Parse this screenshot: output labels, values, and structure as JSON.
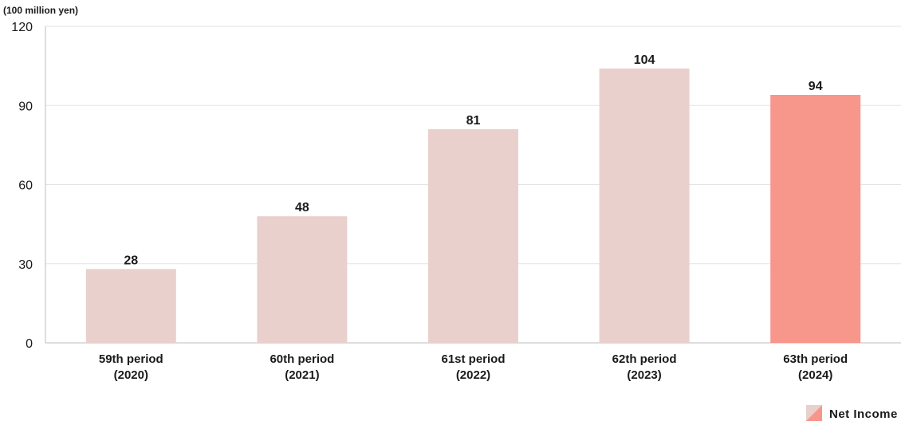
{
  "chart_data": {
    "type": "bar",
    "unit_label": "(100 million yen)",
    "categories": [
      {
        "line1": "59th period",
        "line2": "(2020)"
      },
      {
        "line1": "60th period",
        "line2": "(2021)"
      },
      {
        "line1": "61st period",
        "line2": "(2022)"
      },
      {
        "line1": "62th period",
        "line2": "(2023)"
      },
      {
        "line1": "63th period",
        "line2": "(2024)"
      }
    ],
    "series": [
      {
        "name": "Net Income",
        "values": [
          28,
          48,
          81,
          104,
          94
        ],
        "highlight_index": 4
      }
    ],
    "ylim": [
      0,
      120
    ],
    "yticks": [
      0,
      30,
      60,
      90,
      120
    ],
    "grid": true,
    "legend_position": "bottom-right",
    "colors": {
      "bar": "#e9d0cd",
      "bar_highlight": "#f7968b",
      "grid": "#e3e3e3",
      "axis": "#bdbdbd"
    }
  }
}
